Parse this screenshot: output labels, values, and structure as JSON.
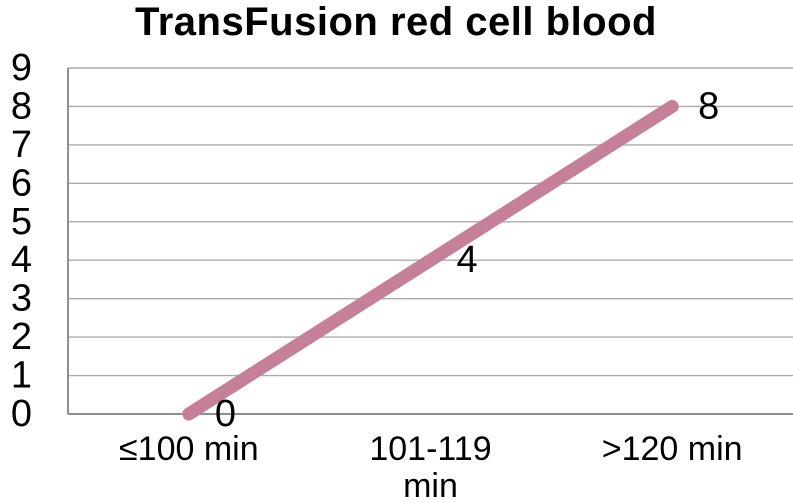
{
  "chart_data": {
    "type": "line",
    "title": "TransFusion red cell blood",
    "categories": [
      "≤100 min",
      "101-119 min",
      ">120 min"
    ],
    "category_tick_lines": [
      [
        "≤100 min"
      ],
      [
        "101-119",
        "min"
      ],
      [
        ">120 min"
      ]
    ],
    "values": [
      0,
      4,
      8
    ],
    "series": [
      {
        "name": "TransFusion red cell blood",
        "values": [
          0,
          4,
          8
        ]
      }
    ],
    "data_labels": [
      "0",
      "4",
      "8"
    ],
    "y_ticks": [
      0,
      1,
      2,
      3,
      4,
      5,
      6,
      7,
      8,
      9
    ],
    "ylim": [
      0,
      9
    ],
    "xlabel": "",
    "ylabel": "",
    "grid": "horizontal",
    "legend": "none",
    "line_color": "#C67F98",
    "text_color": "#000000",
    "gridline_color": "#ACACAC",
    "axis_color": "#8F8F8F",
    "background_color": "#FFFFFF"
  }
}
